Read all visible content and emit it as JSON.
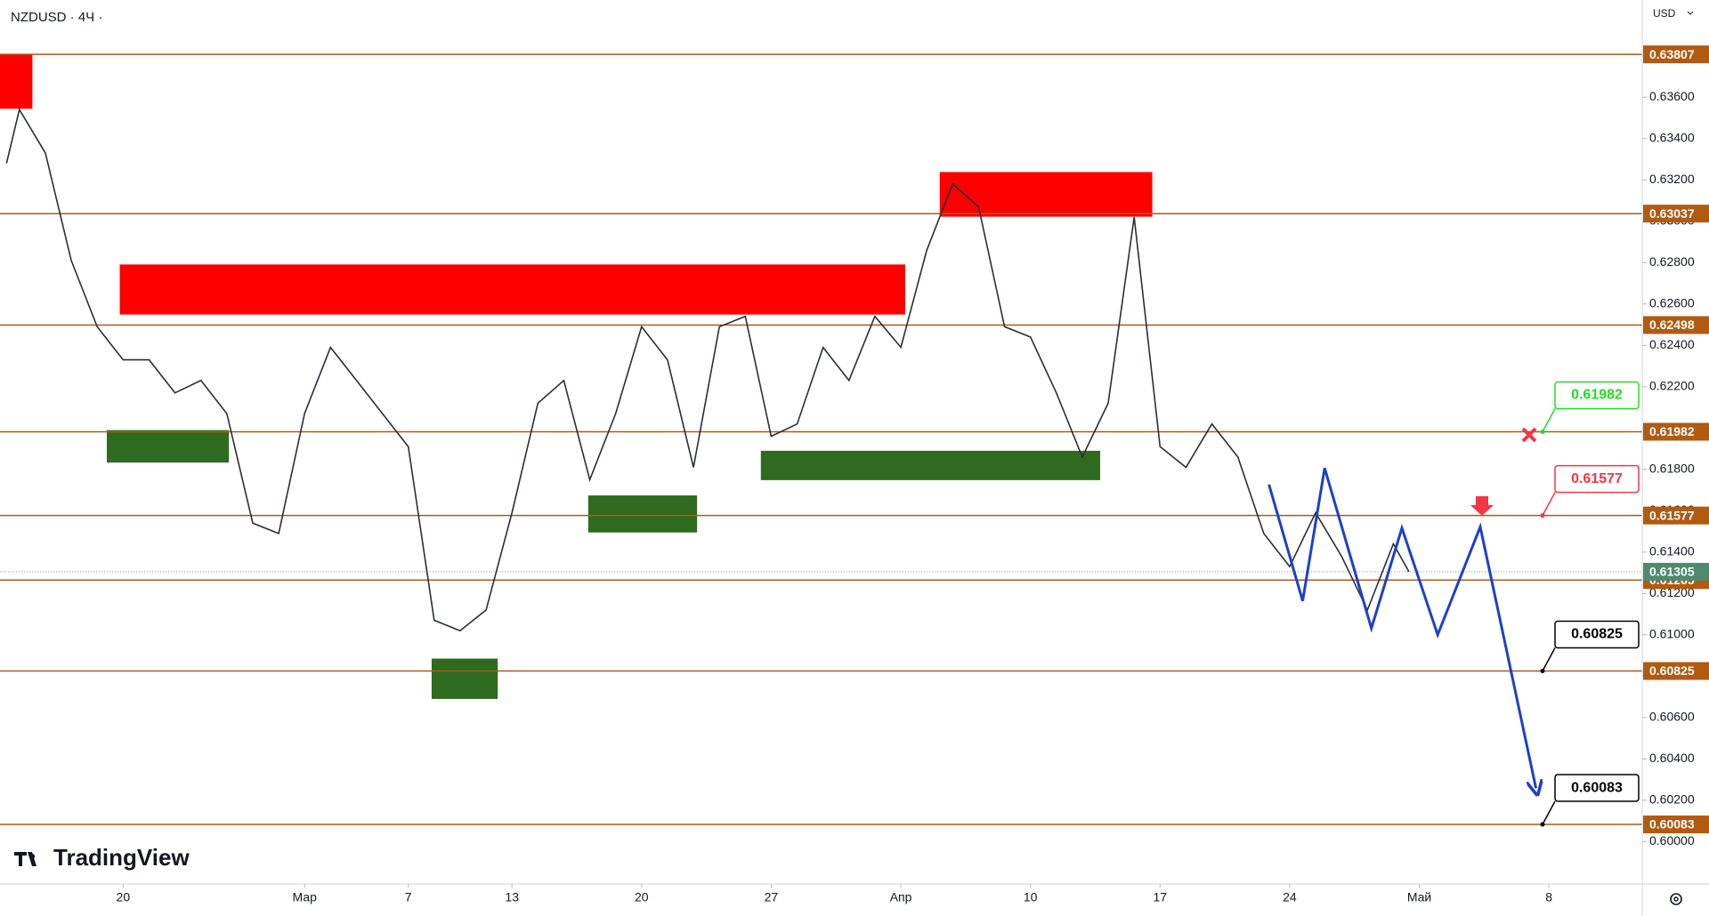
{
  "chart_data": {
    "type": "line",
    "title": "NZDUSD · 4Ч ·",
    "currency": "USD",
    "brand": "TradingView",
    "x": [
      -4.5,
      -4,
      -3,
      -2,
      -1,
      0,
      1,
      2,
      3,
      4,
      5,
      6,
      7,
      8,
      9,
      10,
      11,
      12,
      13,
      14,
      15,
      16,
      17,
      18,
      19,
      20,
      21,
      22,
      23,
      24,
      25,
      26,
      27,
      28,
      29,
      30,
      31,
      32,
      33,
      34,
      35,
      36,
      37,
      38,
      39,
      40,
      41,
      42,
      43,
      44,
      45,
      46,
      47,
      48,
      49,
      49.6
    ],
    "values": [
      0.6328,
      0.6354,
      0.6333,
      0.6281,
      0.6249,
      0.6233,
      0.6233,
      0.6217,
      0.6223,
      0.6207,
      0.6154,
      0.6149,
      0.6207,
      0.6239,
      0.6223,
      0.6207,
      0.6191,
      0.6107,
      0.6102,
      0.6112,
      0.6159,
      0.6212,
      0.6223,
      0.6175,
      0.6207,
      0.6249,
      0.6233,
      0.6181,
      0.6249,
      0.6254,
      0.6196,
      0.6202,
      0.6239,
      0.6223,
      0.6254,
      0.6239,
      0.6286,
      0.6318,
      0.6307,
      0.6249,
      0.6244,
      0.6217,
      0.6186,
      0.6212,
      0.6302,
      0.6191,
      0.6181,
      0.6202,
      0.6186,
      0.6149,
      0.6133,
      0.6159,
      0.6138,
      0.6112,
      0.6144,
      0.61305
    ],
    "color": "#2a2e39",
    "xlim": [
      -4.75,
      58.6
    ],
    "ylim": [
      0.59795,
      0.6407
    ],
    "xticks": [
      {
        "value": 0,
        "label": "20"
      },
      {
        "value": 7,
        "label": "Мар"
      },
      {
        "value": 11,
        "label": "7"
      },
      {
        "value": 15,
        "label": "13"
      },
      {
        "value": 20,
        "label": "20"
      },
      {
        "value": 25,
        "label": "27"
      },
      {
        "value": 30,
        "label": "Апр"
      },
      {
        "value": 35,
        "label": "10"
      },
      {
        "value": 40,
        "label": "17"
      },
      {
        "value": 45,
        "label": "24"
      },
      {
        "value": 50,
        "label": "Май"
      },
      {
        "value": 55,
        "label": "8"
      }
    ],
    "yticks": [
      {
        "value": 0.6,
        "label": "0.60000"
      },
      {
        "value": 0.602,
        "label": "0.60200"
      },
      {
        "value": 0.604,
        "label": "0.60400"
      },
      {
        "value": 0.606,
        "label": "0.60600"
      },
      {
        "value": 0.608,
        "label": "0.60800"
      },
      {
        "value": 0.61,
        "label": "0.61000"
      },
      {
        "value": 0.612,
        "label": "0.61200"
      },
      {
        "value": 0.614,
        "label": "0.61400"
      },
      {
        "value": 0.616,
        "label": "0.61600"
      },
      {
        "value": 0.618,
        "label": "0.61800"
      },
      {
        "value": 0.62,
        "label": "0.62000"
      },
      {
        "value": 0.622,
        "label": "0.62200"
      },
      {
        "value": 0.624,
        "label": "0.62400"
      },
      {
        "value": 0.626,
        "label": "0.62600"
      },
      {
        "value": 0.628,
        "label": "0.62800"
      },
      {
        "value": 0.63,
        "label": "0.63000"
      },
      {
        "value": 0.632,
        "label": "0.63200"
      },
      {
        "value": 0.634,
        "label": "0.63400"
      },
      {
        "value": 0.636,
        "label": "0.63600"
      },
      {
        "value": 0.638,
        "label": "0.63800"
      }
    ],
    "levels": [
      0.63807,
      0.63037,
      0.62498,
      0.61982,
      0.61577,
      0.61265,
      0.60825,
      0.60083
    ],
    "level_color": "#b05a12",
    "last_price": 0.61305,
    "last_price_color": "#4f8a6e",
    "zones": [
      {
        "x": [
          -4.75,
          -3.5
        ],
        "y": [
          0.63544,
          0.63807
        ],
        "color": "#ff0000"
      },
      {
        "x": [
          -0.13,
          30.17
        ],
        "y": [
          0.62549,
          0.62791
        ],
        "color": "#ff0000"
      },
      {
        "x": [
          31.5,
          39.7
        ],
        "y": [
          0.63022,
          0.63238
        ],
        "color": "#ff0000"
      },
      {
        "x": [
          -0.63,
          4.08
        ],
        "y": [
          0.61833,
          0.6199
        ],
        "color": "#2e6b1e"
      },
      {
        "x": [
          11.9,
          14.45
        ],
        "y": [
          0.6069,
          0.60885
        ],
        "color": "#2e6b1e"
      },
      {
        "x": [
          17.94,
          22.14
        ],
        "y": [
          0.61495,
          0.61674
        ],
        "color": "#2e6b1e"
      },
      {
        "x": [
          24.6,
          37.69
        ],
        "y": [
          0.61748,
          0.6189
        ],
        "color": "#2e6b1e"
      }
    ],
    "projection": {
      "x": [
        44.2,
        45.5,
        46.35,
        48.15,
        49.33,
        50.71,
        52.35,
        54.5
      ],
      "values": [
        0.61727,
        0.61164,
        0.61806,
        0.61032,
        0.61516,
        0.61,
        0.61522,
        0.60258
      ],
      "color": "#1e40c8"
    },
    "annotations": [
      {
        "value": 0.61982,
        "color": "#22dd22"
      },
      {
        "value": 0.61577,
        "color": "#f23645"
      },
      {
        "value": 0.60825,
        "color": "#000000"
      },
      {
        "value": 0.60083,
        "color": "#000000"
      }
    ]
  }
}
